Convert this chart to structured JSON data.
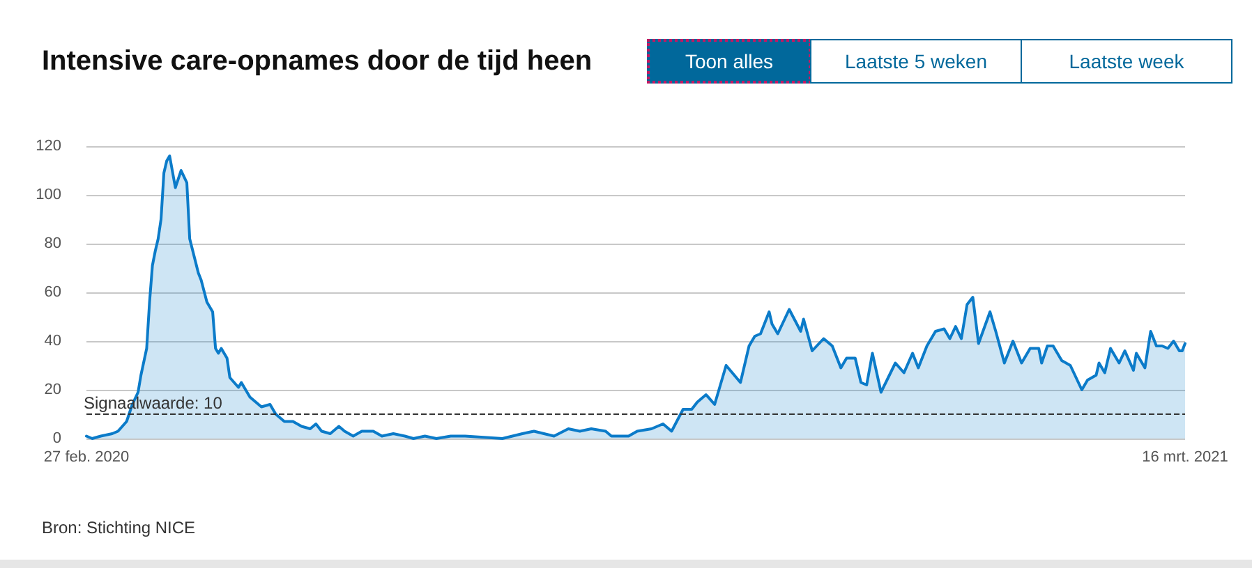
{
  "chart_data": {
    "type": "area",
    "title": "Intensive care-opnames door de tijd heen",
    "annotations": [
      "Bron: Stichting NICE",
      "Toon alles",
      "Laatste 5 weken",
      "Laatste week"
    ],
    "color": "#0b7bc9",
    "grid": "y",
    "line_style": "solid",
    "xlim": [
      "2020-02-27",
      "2021-03-16"
    ],
    "xticks": [
      {
        "value": "2020-02-27",
        "label": "27 feb. 2020"
      },
      {
        "value": "2021-03-16",
        "label": "16 mrt. 2021"
      }
    ],
    "ylim": [
      0,
      120
    ],
    "yticks": [
      0,
      20,
      40,
      60,
      80,
      100,
      120
    ],
    "ref_lines": [
      {
        "axis": "y",
        "value": 10,
        "label": "Signaalwaarde: 10",
        "color": "#333333",
        "line_style": "dashed"
      }
    ],
    "x": [
      "2020-02-27",
      "2020-02-29",
      "2020-03-03",
      "2020-03-07",
      "2020-03-09",
      "2020-03-12",
      "2020-03-14",
      "2020-03-16",
      "2020-03-17",
      "2020-03-19",
      "2020-03-20",
      "2020-03-21",
      "2020-03-22",
      "2020-03-23",
      "2020-03-24",
      "2020-03-25",
      "2020-03-26",
      "2020-03-27",
      "2020-03-29",
      "2020-03-31",
      "2020-04-02",
      "2020-04-03",
      "2020-04-06",
      "2020-04-07",
      "2020-04-09",
      "2020-04-11",
      "2020-04-12",
      "2020-04-13",
      "2020-04-14",
      "2020-04-16",
      "2020-04-17",
      "2020-04-20",
      "2020-04-21",
      "2020-04-24",
      "2020-04-26",
      "2020-04-28",
      "2020-05-01",
      "2020-05-03",
      "2020-05-06",
      "2020-05-09",
      "2020-05-12",
      "2020-05-15",
      "2020-05-17",
      "2020-05-19",
      "2020-05-22",
      "2020-05-25",
      "2020-05-27",
      "2020-05-30",
      "2020-06-02",
      "2020-06-06",
      "2020-06-09",
      "2020-06-13",
      "2020-06-17",
      "2020-06-20",
      "2020-06-24",
      "2020-06-28",
      "2020-07-03",
      "2020-07-08",
      "2020-07-21",
      "2020-07-28",
      "2020-08-01",
      "2020-08-08",
      "2020-08-13",
      "2020-08-17",
      "2020-08-21",
      "2020-08-26",
      "2020-08-28",
      "2020-09-03",
      "2020-09-06",
      "2020-09-11",
      "2020-09-15",
      "2020-09-18",
      "2020-09-22",
      "2020-09-25",
      "2020-09-27",
      "2020-09-30",
      "2020-10-03",
      "2020-10-07",
      "2020-10-12",
      "2020-10-15",
      "2020-10-17",
      "2020-10-19",
      "2020-10-22",
      "2020-10-23",
      "2020-10-25",
      "2020-10-29",
      "2020-11-02",
      "2020-11-03",
      "2020-11-06",
      "2020-11-10",
      "2020-11-13",
      "2020-11-16",
      "2020-11-18",
      "2020-11-21",
      "2020-11-23",
      "2020-11-25",
      "2020-11-27",
      "2020-11-30",
      "2020-12-05",
      "2020-12-08",
      "2020-12-11",
      "2020-12-13",
      "2020-12-16",
      "2020-12-19",
      "2020-12-22",
      "2020-12-24",
      "2020-12-26",
      "2020-12-28",
      "2020-12-30",
      "2021-01-01",
      "2021-01-03",
      "2021-01-07",
      "2021-01-09",
      "2021-01-12",
      "2021-01-15",
      "2021-01-18",
      "2021-01-21",
      "2021-01-24",
      "2021-01-25",
      "2021-01-27",
      "2021-01-29",
      "2021-02-01",
      "2021-02-04",
      "2021-02-08",
      "2021-02-10",
      "2021-02-13",
      "2021-02-14",
      "2021-02-16",
      "2021-02-18",
      "2021-02-21",
      "2021-02-23",
      "2021-02-26",
      "2021-02-27",
      "2021-03-02",
      "2021-03-04",
      "2021-03-06",
      "2021-03-08",
      "2021-03-10",
      "2021-03-12",
      "2021-03-14",
      "2021-03-15",
      "2021-03-16"
    ],
    "values": [
      1,
      0,
      1,
      2,
      3,
      7,
      14,
      19,
      26,
      37,
      56,
      71,
      77,
      82,
      90,
      109,
      114,
      116,
      103,
      110,
      105,
      82,
      68,
      65,
      56,
      52,
      37,
      35,
      37,
      33,
      25,
      21,
      23,
      17,
      15,
      13,
      14,
      10,
      7,
      7,
      5,
      4,
      6,
      3,
      2,
      5,
      3,
      1,
      3,
      3,
      1,
      2,
      1,
      0,
      1,
      0,
      1,
      1,
      0,
      2,
      3,
      1,
      4,
      3,
      4,
      3,
      1,
      1,
      3,
      4,
      6,
      3,
      12,
      12,
      15,
      18,
      14,
      30,
      23,
      38,
      42,
      43,
      52,
      47,
      43,
      53,
      44,
      49,
      36,
      41,
      38,
      29,
      33,
      33,
      23,
      22,
      35,
      19,
      31,
      27,
      35,
      29,
      38,
      44,
      45,
      41,
      46,
      41,
      55,
      58,
      39,
      52,
      44,
      31,
      40,
      31,
      37,
      37,
      31,
      38,
      38,
      32,
      30,
      20,
      24,
      26,
      31,
      27,
      37,
      31,
      36,
      28,
      35,
      29,
      44,
      38,
      38,
      37,
      40,
      36,
      36,
      39
    ]
  }
}
